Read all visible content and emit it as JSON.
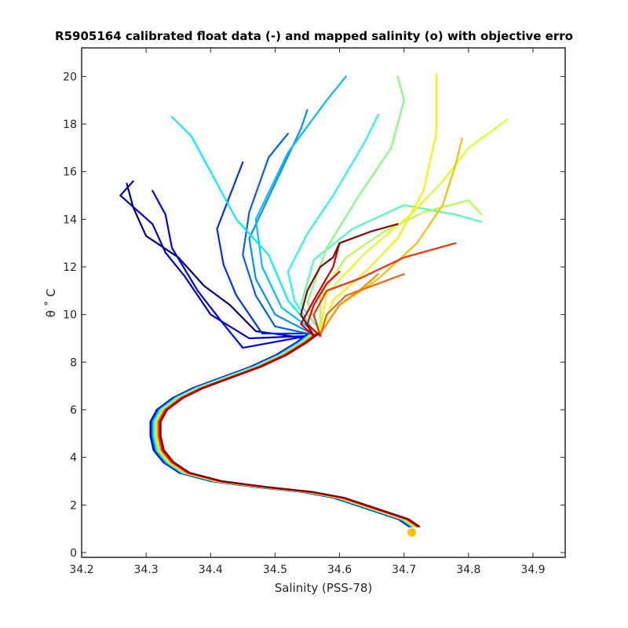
{
  "chart_data": {
    "type": "line",
    "title": "R5905164 calibrated float data (-) and mapped salinity (o) with objective erro",
    "xlabel": "Salinity (PSS-78)",
    "ylabel": "θ ˚ C",
    "xlim": [
      34.2,
      34.95
    ],
    "ylim": [
      -0.2,
      21.2
    ],
    "xticks": [
      34.2,
      34.3,
      34.4,
      34.5,
      34.6,
      34.7,
      34.8,
      34.9
    ],
    "xtick_labels": [
      "34.2",
      "34.3",
      "34.4",
      "34.5",
      "34.6",
      "34.7",
      "34.8",
      "34.9"
    ],
    "yticks": [
      0,
      2,
      4,
      6,
      8,
      10,
      12,
      14,
      16,
      18,
      20
    ],
    "ytick_labels": [
      "0",
      "2",
      "4",
      "6",
      "8",
      "10",
      "12",
      "14",
      "16",
      "18",
      "20"
    ],
    "grid": false,
    "colormap": "jet (color indicates profile number, blue = early, red = late)",
    "deep_curve": {
      "points": [
        [
          34.716,
          1.1
        ],
        [
          34.7,
          1.4
        ],
        [
          34.65,
          1.85
        ],
        [
          34.6,
          2.3
        ],
        [
          34.55,
          2.55
        ],
        [
          34.48,
          2.75
        ],
        [
          34.41,
          3.0
        ],
        [
          34.36,
          3.35
        ],
        [
          34.335,
          3.8
        ],
        [
          34.32,
          4.3
        ],
        [
          34.315,
          4.9
        ],
        [
          34.315,
          5.5
        ],
        [
          34.325,
          6.0
        ],
        [
          34.35,
          6.5
        ],
        [
          34.38,
          6.9
        ],
        [
          34.42,
          7.3
        ],
        [
          34.47,
          7.8
        ],
        [
          34.51,
          8.3
        ],
        [
          34.54,
          8.8
        ],
        [
          34.56,
          9.2
        ]
      ]
    },
    "mapped_points": [
      {
        "x": 34.712,
        "y": 0.85,
        "color": "#ffbf00"
      }
    ],
    "upper_profiles": [
      {
        "color": "#00008f",
        "points": [
          [
            34.55,
            9.0
          ],
          [
            34.47,
            9.3
          ],
          [
            34.43,
            10.4
          ],
          [
            34.39,
            11.2
          ],
          [
            34.35,
            12.4
          ],
          [
            34.3,
            13.3
          ],
          [
            34.28,
            14.5
          ],
          [
            34.27,
            15.5
          ]
        ]
      },
      {
        "color": "#0000cf",
        "points": [
          [
            34.55,
            9.1
          ],
          [
            34.46,
            9.0
          ],
          [
            34.4,
            10.0
          ],
          [
            34.36,
            11.6
          ],
          [
            34.33,
            12.6
          ],
          [
            34.31,
            13.8
          ],
          [
            34.26,
            15.0
          ],
          [
            34.28,
            15.6
          ]
        ]
      },
      {
        "color": "#0000ff",
        "points": [
          [
            34.55,
            9.1
          ],
          [
            34.45,
            8.6
          ],
          [
            34.42,
            9.6
          ],
          [
            34.38,
            11.0
          ],
          [
            34.34,
            12.8
          ],
          [
            34.33,
            14.2
          ],
          [
            34.31,
            15.2
          ]
        ]
      },
      {
        "color": "#0030ff",
        "points": [
          [
            34.55,
            9.2
          ],
          [
            34.48,
            9.2
          ],
          [
            34.44,
            10.8
          ],
          [
            34.42,
            12.1
          ],
          [
            34.41,
            13.6
          ],
          [
            34.43,
            15.0
          ],
          [
            34.45,
            16.4
          ]
        ]
      },
      {
        "color": "#0060ff",
        "points": [
          [
            34.55,
            9.2
          ],
          [
            34.5,
            9.5
          ],
          [
            34.47,
            10.8
          ],
          [
            34.45,
            12.5
          ],
          [
            34.46,
            14.3
          ],
          [
            34.49,
            16.6
          ],
          [
            34.52,
            17.6
          ]
        ]
      },
      {
        "color": "#0090ff",
        "points": [
          [
            34.55,
            9.3
          ],
          [
            34.5,
            10.0
          ],
          [
            34.47,
            11.5
          ],
          [
            34.46,
            13.2
          ],
          [
            34.5,
            15.5
          ],
          [
            34.54,
            17.8
          ],
          [
            34.55,
            18.6
          ]
        ]
      },
      {
        "color": "#00bfff",
        "points": [
          [
            34.56,
            9.3
          ],
          [
            34.51,
            10.3
          ],
          [
            34.48,
            12.0
          ],
          [
            34.47,
            14.0
          ],
          [
            34.52,
            16.8
          ],
          [
            34.58,
            19.0
          ],
          [
            34.61,
            20.0
          ]
        ]
      },
      {
        "color": "#00efff",
        "points": [
          [
            34.56,
            9.3
          ],
          [
            34.52,
            10.6
          ],
          [
            34.49,
            12.5
          ],
          [
            34.44,
            14.0
          ],
          [
            34.4,
            16.0
          ],
          [
            34.37,
            17.5
          ],
          [
            34.34,
            18.3
          ]
        ]
      },
      {
        "color": "#20ffdf",
        "points": [
          [
            34.56,
            9.3
          ],
          [
            34.53,
            10.6
          ],
          [
            34.52,
            11.8
          ],
          [
            34.55,
            13.4
          ],
          [
            34.59,
            15.0
          ],
          [
            34.64,
            17.3
          ],
          [
            34.66,
            18.4
          ]
        ]
      },
      {
        "color": "#50ffaf",
        "points": [
          [
            34.57,
            9.3
          ],
          [
            34.54,
            10.4
          ],
          [
            34.56,
            12.3
          ],
          [
            34.62,
            13.6
          ],
          [
            34.7,
            14.6
          ],
          [
            34.78,
            14.2
          ],
          [
            34.82,
            13.9
          ]
        ]
      },
      {
        "color": "#80ff80",
        "points": [
          [
            34.57,
            9.3
          ],
          [
            34.55,
            10.5
          ],
          [
            34.58,
            12.8
          ],
          [
            34.63,
            15.0
          ],
          [
            34.68,
            17.0
          ],
          [
            34.7,
            19.0
          ],
          [
            34.69,
            20.0
          ]
        ]
      },
      {
        "color": "#afff50",
        "points": [
          [
            34.57,
            9.3
          ],
          [
            34.57,
            10.8
          ],
          [
            34.61,
            12.4
          ],
          [
            34.67,
            13.5
          ],
          [
            34.73,
            14.3
          ],
          [
            34.8,
            14.8
          ],
          [
            34.82,
            14.2
          ]
        ]
      },
      {
        "color": "#dfff20",
        "points": [
          [
            34.57,
            9.3
          ],
          [
            34.58,
            10.9
          ],
          [
            34.64,
            12.6
          ],
          [
            34.71,
            14.2
          ],
          [
            34.76,
            15.6
          ],
          [
            34.8,
            17.0
          ],
          [
            34.86,
            18.2
          ]
        ]
      },
      {
        "color": "#ffef00",
        "points": [
          [
            34.57,
            9.2
          ],
          [
            34.59,
            10.6
          ],
          [
            34.64,
            11.8
          ],
          [
            34.69,
            13.2
          ],
          [
            34.73,
            15.2
          ],
          [
            34.75,
            17.6
          ],
          [
            34.75,
            20.1
          ]
        ]
      },
      {
        "color": "#ffbf00",
        "points": [
          [
            34.57,
            9.2
          ],
          [
            34.6,
            10.4
          ],
          [
            34.66,
            11.5
          ],
          [
            34.72,
            13.0
          ],
          [
            34.76,
            14.6
          ],
          [
            34.78,
            16.3
          ],
          [
            34.79,
            17.4
          ]
        ]
      },
      {
        "color": "#ff8f00",
        "points": [
          [
            34.57,
            9.2
          ],
          [
            34.6,
            10.4
          ],
          [
            34.63,
            11.0
          ],
          [
            34.66,
            11.7
          ]
        ]
      },
      {
        "color": "#ff6000",
        "points": [
          [
            34.57,
            9.1
          ],
          [
            34.58,
            10.0
          ],
          [
            34.61,
            10.8
          ],
          [
            34.65,
            11.2
          ],
          [
            34.7,
            11.7
          ]
        ]
      },
      {
        "color": "#ff3000",
        "points": [
          [
            34.57,
            9.1
          ],
          [
            34.56,
            10.0
          ],
          [
            34.58,
            11.0
          ],
          [
            34.63,
            11.5
          ],
          [
            34.7,
            12.4
          ],
          [
            34.78,
            13.0
          ]
        ]
      },
      {
        "color": "#ff0000",
        "points": [
          [
            34.57,
            9.1
          ],
          [
            34.55,
            9.6
          ],
          [
            34.56,
            10.4
          ],
          [
            34.58,
            11.3
          ],
          [
            34.6,
            11.8
          ]
        ]
      },
      {
        "color": "#cf0000",
        "points": [
          [
            34.56,
            9.1
          ],
          [
            34.54,
            9.6
          ],
          [
            34.56,
            10.6
          ],
          [
            34.59,
            12.0
          ],
          [
            34.6,
            13.0
          ]
        ]
      },
      {
        "color": "#8f0000",
        "points": [
          [
            34.56,
            9.1
          ],
          [
            34.54,
            10.0
          ],
          [
            34.55,
            11.0
          ],
          [
            34.57,
            12.0
          ],
          [
            34.59,
            12.4
          ],
          [
            34.6,
            13.0
          ],
          [
            34.65,
            13.5
          ],
          [
            34.69,
            13.8
          ]
        ]
      }
    ]
  }
}
